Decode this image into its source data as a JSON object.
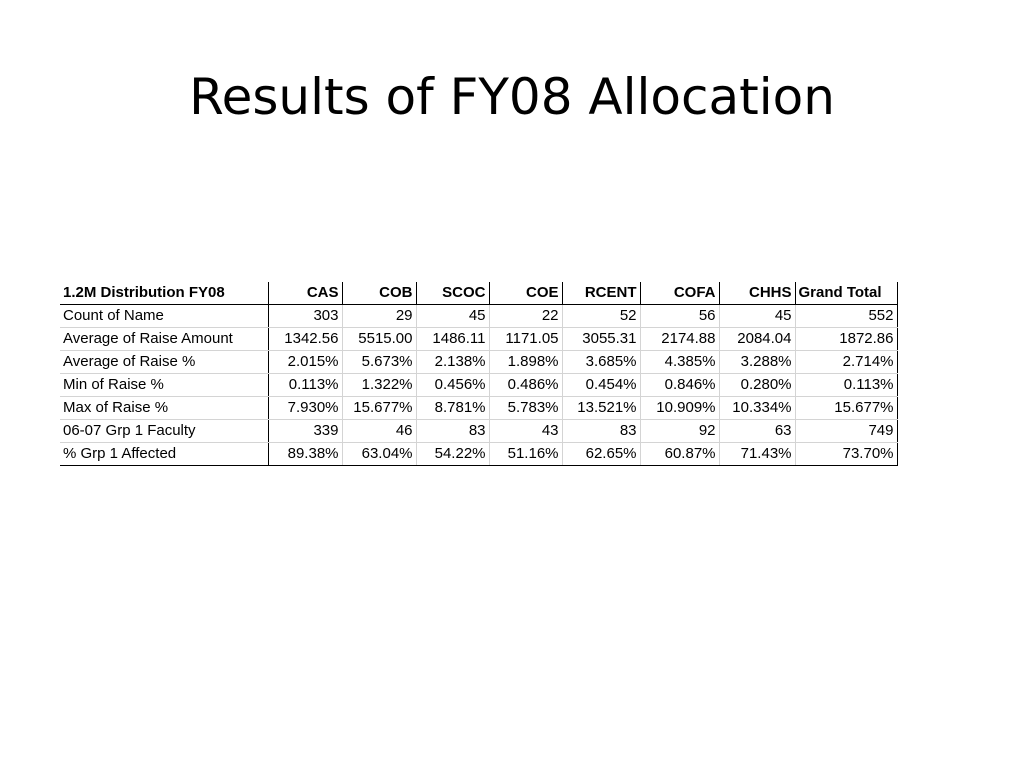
{
  "slide": {
    "title": "Results of FY08 Allocation"
  },
  "table": {
    "corner_label": "1.2M Distribution FY08",
    "columns": [
      "CAS",
      "COB",
      "SCOC",
      "COE",
      "RCENT",
      "COFA",
      "CHHS",
      "Grand Total"
    ],
    "rows": [
      {
        "label": "Count of Name",
        "values": [
          "303",
          "29",
          "45",
          "22",
          "52",
          "56",
          "45",
          "552"
        ]
      },
      {
        "label": "Average of Raise Amount",
        "values": [
          "1342.56",
          "5515.00",
          "1486.11",
          "1171.05",
          "3055.31",
          "2174.88",
          "2084.04",
          "1872.86"
        ]
      },
      {
        "label": "Average of Raise %",
        "values": [
          "2.015%",
          "5.673%",
          "2.138%",
          "1.898%",
          "3.685%",
          "4.385%",
          "3.288%",
          "2.714%"
        ]
      },
      {
        "label": "Min of Raise %",
        "values": [
          "0.113%",
          "1.322%",
          "0.456%",
          "0.486%",
          "0.454%",
          "0.846%",
          "0.280%",
          "0.113%"
        ]
      },
      {
        "label": "Max of Raise %",
        "values": [
          "7.930%",
          "15.677%",
          "8.781%",
          "5.783%",
          "13.521%",
          "10.909%",
          "10.334%",
          "15.677%"
        ]
      },
      {
        "label": "06-07 Grp 1 Faculty",
        "values": [
          "339",
          "46",
          "83",
          "43",
          "83",
          "92",
          "63",
          "749"
        ]
      },
      {
        "label": "% Grp 1 Affected",
        "values": [
          "89.38%",
          "63.04%",
          "54.22%",
          "51.16%",
          "62.65%",
          "60.87%",
          "71.43%",
          "73.70%"
        ]
      }
    ]
  }
}
